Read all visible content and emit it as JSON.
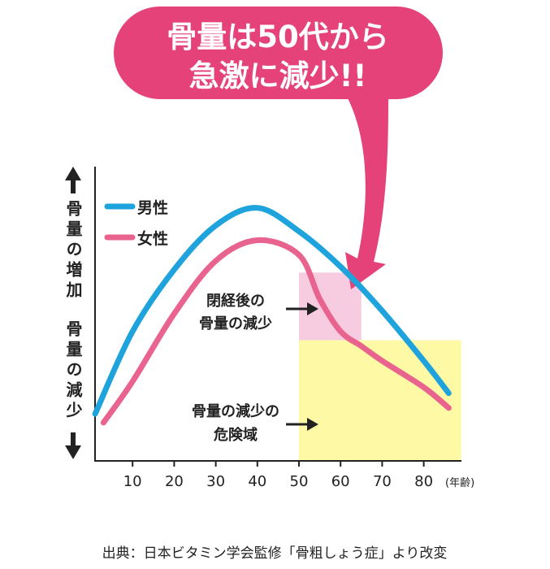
{
  "callout": {
    "line1": "骨量は50代から",
    "line2": "急激に減少!!",
    "color": "#e5427a"
  },
  "caption": "出典：日本ビタミン学会監修「骨粗しょう症」より改変",
  "chart_data": {
    "type": "line",
    "title": "",
    "xlabel": "(年齢)",
    "ylabel_up": "骨量の増加",
    "ylabel_down": "骨量の減少",
    "xlim": [
      0,
      90
    ],
    "ylim": [
      0,
      100
    ],
    "y_ticks_shown": false,
    "grid": false,
    "x_ticks": [
      10,
      20,
      30,
      40,
      50,
      60,
      70,
      80
    ],
    "x_tick_labels": [
      "10",
      "20",
      "30",
      "40",
      "50",
      "60",
      "70",
      "80"
    ],
    "legend_position": "top-left",
    "series": [
      {
        "name": "男性",
        "color": "#1ea3dc",
        "x": [
          1,
          10,
          20,
          30,
          40,
          50,
          60,
          70,
          80,
          86
        ],
        "y": [
          16,
          44,
          65,
          80,
          86,
          78,
          66,
          51,
          34,
          23
        ]
      },
      {
        "name": "女性",
        "color": "#e8648f",
        "x": [
          3,
          10,
          20,
          30,
          40,
          50,
          55,
          60,
          65,
          70,
          80,
          86
        ],
        "y": [
          13,
          27,
          50,
          68,
          75,
          70,
          55,
          44,
          39,
          34,
          25,
          18
        ]
      }
    ],
    "regions": [
      {
        "label": "閉経後の\n骨量の減少",
        "line1": "閉経後の",
        "line2": "骨量の減少",
        "x": [
          50,
          65
        ],
        "y": [
          41,
          64
        ],
        "color": "#f8cce0"
      },
      {
        "label": "骨量の減少の\n危険域",
        "line1": "骨量の減少の",
        "line2": "危険域",
        "x": [
          50,
          89
        ],
        "y": [
          0,
          41
        ],
        "color": "#fef9a5"
      }
    ]
  }
}
